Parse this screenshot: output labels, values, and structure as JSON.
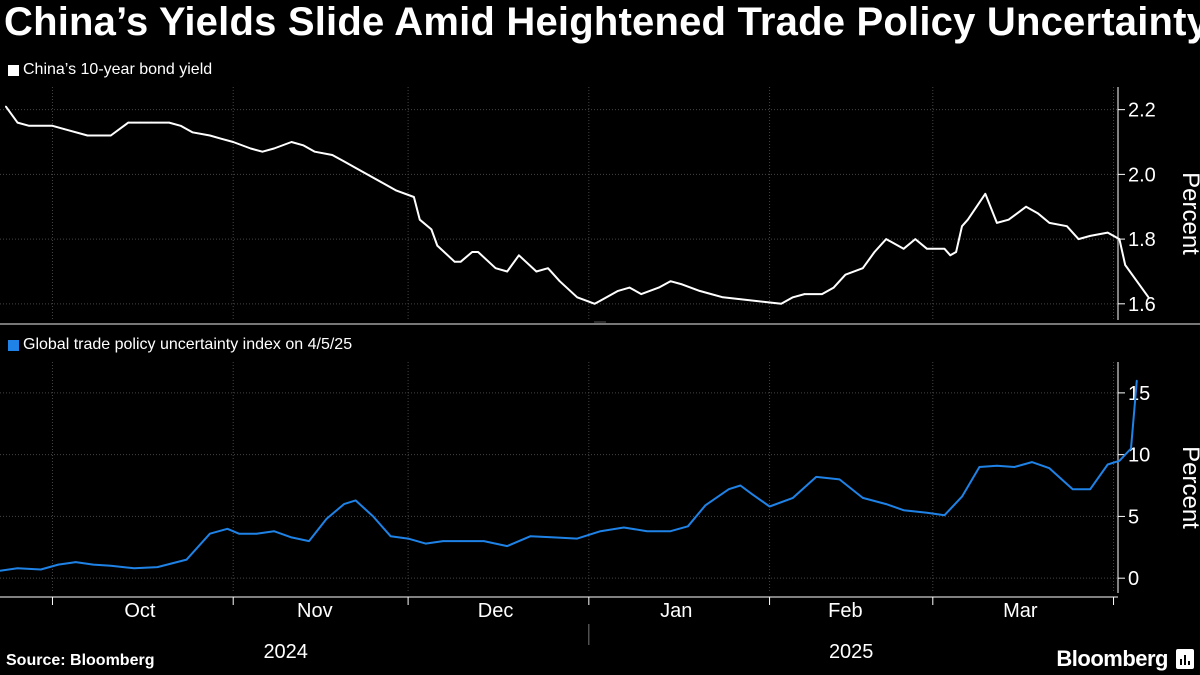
{
  "title": "China’s Yields Slide Amid Heightened Trade Policy Uncertainty",
  "source": "Source: Bloomberg",
  "brand": "Bloomberg",
  "colors": {
    "background": "#000000",
    "top_series": "#ffffff",
    "bottom_series": "#1f82e6",
    "grid": "#444444"
  },
  "chart_data": [
    {
      "type": "line",
      "legend": "China’s 10-year bond yield",
      "ylabel": "Percent",
      "ylim": [
        1.55,
        2.27
      ],
      "yticks": [
        1.6,
        1.8,
        2.0,
        2.2
      ],
      "ytick_labels": [
        "1.6",
        "1.8",
        "2.0",
        "2.2"
      ],
      "grid": true,
      "series": [
        {
          "x": [
            "2024-09-23",
            "2024-09-25",
            "2024-09-27",
            "2024-10-01",
            "2024-10-03",
            "2024-10-07",
            "2024-10-09",
            "2024-10-11",
            "2024-10-14",
            "2024-10-16",
            "2024-10-18",
            "2024-10-21",
            "2024-10-23",
            "2024-10-25",
            "2024-10-28",
            "2024-10-30",
            "2024-11-01",
            "2024-11-04",
            "2024-11-06",
            "2024-11-08",
            "2024-11-11",
            "2024-11-13",
            "2024-11-15",
            "2024-11-18",
            "2024-11-20",
            "2024-11-22",
            "2024-11-25",
            "2024-11-27",
            "2024-11-29",
            "2024-12-02",
            "2024-12-03",
            "2024-12-05",
            "2024-12-06",
            "2024-12-09",
            "2024-12-10",
            "2024-12-12",
            "2024-12-13",
            "2024-12-16",
            "2024-12-18",
            "2024-12-20",
            "2024-12-23",
            "2024-12-25",
            "2024-12-27",
            "2024-12-30",
            "2025-01-02",
            "2025-01-03",
            "2025-01-06",
            "2025-01-08",
            "2025-01-10",
            "2025-01-13",
            "2025-01-15",
            "2025-01-17",
            "2025-01-20",
            "2025-01-22",
            "2025-01-24",
            "2025-02-03",
            "2025-02-05",
            "2025-02-07",
            "2025-02-10",
            "2025-02-12",
            "2025-02-14",
            "2025-02-17",
            "2025-02-19",
            "2025-02-21",
            "2025-02-24",
            "2025-02-26",
            "2025-02-28",
            "2025-03-03",
            "2025-03-04",
            "2025-03-05",
            "2025-03-06",
            "2025-03-07",
            "2025-03-10",
            "2025-03-12",
            "2025-03-14",
            "2025-03-17",
            "2025-03-19",
            "2025-03-21",
            "2025-03-24",
            "2025-03-26",
            "2025-03-28",
            "2025-03-31",
            "2025-04-02",
            "2025-04-03",
            "2025-04-07"
          ],
          "values": [
            2.21,
            2.16,
            2.15,
            2.15,
            2.14,
            2.12,
            2.12,
            2.12,
            2.16,
            2.16,
            2.16,
            2.16,
            2.15,
            2.13,
            2.12,
            2.11,
            2.1,
            2.08,
            2.07,
            2.08,
            2.1,
            2.09,
            2.07,
            2.06,
            2.04,
            2.02,
            1.99,
            1.97,
            1.95,
            1.93,
            1.86,
            1.83,
            1.78,
            1.73,
            1.73,
            1.76,
            1.76,
            1.71,
            1.7,
            1.75,
            1.7,
            1.71,
            1.67,
            1.62,
            1.6,
            1.61,
            1.64,
            1.65,
            1.63,
            1.65,
            1.67,
            1.66,
            1.64,
            1.63,
            1.62,
            1.6,
            1.62,
            1.63,
            1.63,
            1.65,
            1.69,
            1.71,
            1.76,
            1.8,
            1.77,
            1.8,
            1.77,
            1.77,
            1.75,
            1.76,
            1.84,
            1.86,
            1.94,
            1.85,
            1.86,
            1.9,
            1.88,
            1.85,
            1.84,
            1.8,
            1.81,
            1.82,
            1.8,
            1.72,
            1.62
          ]
        }
      ]
    },
    {
      "type": "line",
      "legend": "Global trade policy uncertainty index on 4/5/25",
      "ylabel": "Percent",
      "ylim": [
        -1.2,
        17.5
      ],
      "yticks": [
        0,
        5,
        10,
        15
      ],
      "ytick_labels": [
        "0",
        "5",
        "10",
        "15"
      ],
      "grid": true,
      "series": [
        {
          "x": [
            "2024-09-22",
            "2024-09-25",
            "2024-09-29",
            "2024-10-02",
            "2024-10-05",
            "2024-10-08",
            "2024-10-11",
            "2024-10-15",
            "2024-10-19",
            "2024-10-24",
            "2024-10-28",
            "2024-10-31",
            "2024-11-02",
            "2024-11-05",
            "2024-11-08",
            "2024-11-11",
            "2024-11-14",
            "2024-11-17",
            "2024-11-20",
            "2024-11-22",
            "2024-11-25",
            "2024-11-28",
            "2024-12-01",
            "2024-12-04",
            "2024-12-07",
            "2024-12-10",
            "2024-12-14",
            "2024-12-18",
            "2024-12-22",
            "2024-12-26",
            "2024-12-30",
            "2025-01-03",
            "2025-01-07",
            "2025-01-11",
            "2025-01-15",
            "2025-01-18",
            "2025-01-21",
            "2025-01-25",
            "2025-01-27",
            "2025-01-29",
            "2025-02-01",
            "2025-02-05",
            "2025-02-09",
            "2025-02-13",
            "2025-02-17",
            "2025-02-21",
            "2025-02-24",
            "2025-02-28",
            "2025-03-03",
            "2025-03-06",
            "2025-03-09",
            "2025-03-12",
            "2025-03-15",
            "2025-03-18",
            "2025-03-21",
            "2025-03-25",
            "2025-03-28",
            "2025-03-31",
            "2025-04-02",
            "2025-04-04",
            "2025-04-05"
          ],
          "values": [
            0.6,
            0.8,
            0.7,
            1.1,
            1.3,
            1.1,
            1.0,
            0.8,
            0.9,
            1.5,
            3.6,
            4.0,
            3.6,
            3.6,
            3.8,
            3.3,
            3.0,
            4.8,
            6.0,
            6.3,
            5.0,
            3.4,
            3.2,
            2.8,
            3.0,
            3.0,
            3.0,
            2.6,
            3.4,
            3.3,
            3.2,
            3.8,
            4.1,
            3.8,
            3.8,
            4.2,
            5.9,
            7.2,
            7.5,
            6.8,
            5.8,
            6.5,
            8.2,
            8.0,
            6.5,
            6.0,
            5.5,
            5.3,
            5.1,
            6.6,
            9.0,
            9.1,
            9.0,
            9.4,
            8.9,
            7.2,
            7.2,
            9.2,
            9.5,
            10.5,
            16.0
          ]
        }
      ]
    }
  ],
  "x_axis": {
    "month_labels": [
      "Oct",
      "Nov",
      "Dec",
      "Jan",
      "Feb",
      "Mar"
    ],
    "month_label_dates": [
      "2024-10-16",
      "2024-11-15",
      "2024-12-16",
      "2025-01-16",
      "2025-02-14",
      "2025-03-16"
    ],
    "month_starts": [
      "2024-10-01",
      "2024-11-01",
      "2024-12-01",
      "2025-01-01",
      "2025-02-01",
      "2025-03-01",
      "2025-04-01"
    ],
    "years": [
      "2024",
      "2025"
    ],
    "year_label_dates": [
      "2024-11-10",
      "2025-02-15"
    ],
    "year_divider": "2025-01-01"
  }
}
